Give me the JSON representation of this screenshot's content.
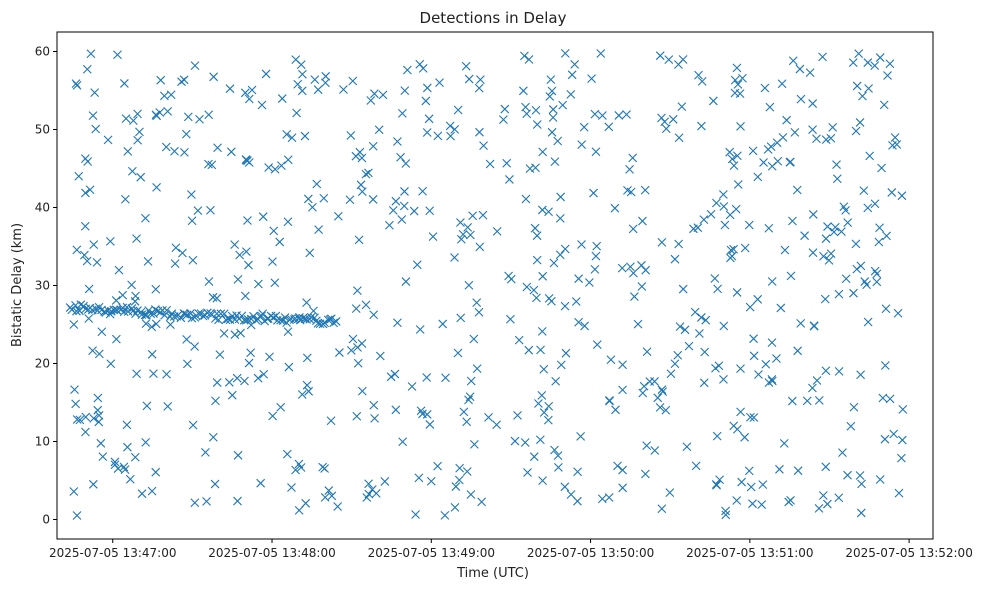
{
  "chart_data": {
    "type": "scatter",
    "title": "Detections in Delay",
    "xlabel": "Time (UTC)",
    "ylabel": "Bistatic Delay (km)",
    "x_ticks": [
      "2025-07-05 13:47:00",
      "2025-07-05 13:48:00",
      "2025-07-05 13:49:00",
      "2025-07-05 13:50:00",
      "2025-07-05 13:51:00",
      "2025-07-05 13:52:00"
    ],
    "y_ticks": [
      "0",
      "10",
      "20",
      "30",
      "40",
      "50",
      "60"
    ],
    "xlim": [
      "2025-07-05 13:46:39",
      "2025-07-05 13:52:09"
    ],
    "ylim": [
      -2.5,
      62.5
    ],
    "marker": "x",
    "marker_color": "#1f77b4",
    "grid": false,
    "legend": "none",
    "track": {
      "description_points": [
        {
          "t": "2025-07-05 13:46:44",
          "y": 27.2
        },
        {
          "t": "2025-07-05 13:47:00",
          "y": 26.9
        },
        {
          "t": "2025-07-05 13:47:20",
          "y": 26.4
        },
        {
          "t": "2025-07-05 13:47:40",
          "y": 26.0
        },
        {
          "t": "2025-07-05 13:48:00",
          "y": 25.8
        },
        {
          "t": "2025-07-05 13:48:20",
          "y": 25.4
        },
        {
          "t": "2025-07-05 13:48:25",
          "y": 25.3
        }
      ]
    },
    "clutter": {
      "t_range": [
        "2025-07-05 13:46:44",
        "2025-07-05 13:51:58"
      ],
      "y_range": [
        0.5,
        59.8
      ],
      "count": 720
    }
  }
}
